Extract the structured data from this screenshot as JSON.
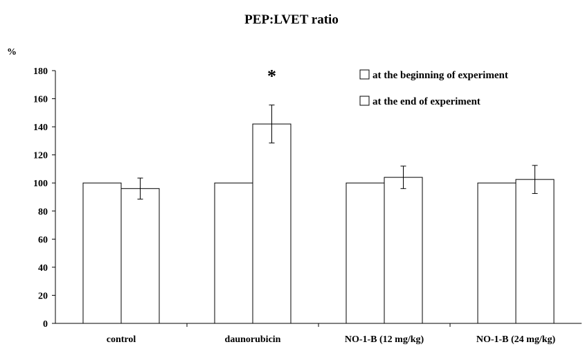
{
  "chart_data": {
    "type": "bar",
    "title": "PEP:LVET ratio",
    "ylabel": "%",
    "xlabel": "",
    "ylim": [
      0,
      180
    ],
    "yticks": [
      0,
      20,
      40,
      60,
      80,
      100,
      120,
      140,
      160,
      180
    ],
    "categories": [
      "control",
      "daunorubicin",
      "NO-1-B (12 mg/kg)",
      "NO-1-B (24 mg/kg)"
    ],
    "series": [
      {
        "name": "at the beginning of experiment",
        "values": [
          100,
          100,
          100,
          100
        ],
        "errors": [
          0,
          0,
          0,
          0
        ],
        "color": "#ffffff"
      },
      {
        "name": "at the end of experiment",
        "values": [
          96,
          142,
          104,
          102.5
        ],
        "errors": [
          7.5,
          13.5,
          8,
          10
        ],
        "color": "#ffffff"
      }
    ],
    "annotations": [
      {
        "text": "*",
        "category": "daunorubicin",
        "series": 1
      }
    ],
    "legend_position": "top-right",
    "grid": false
  }
}
